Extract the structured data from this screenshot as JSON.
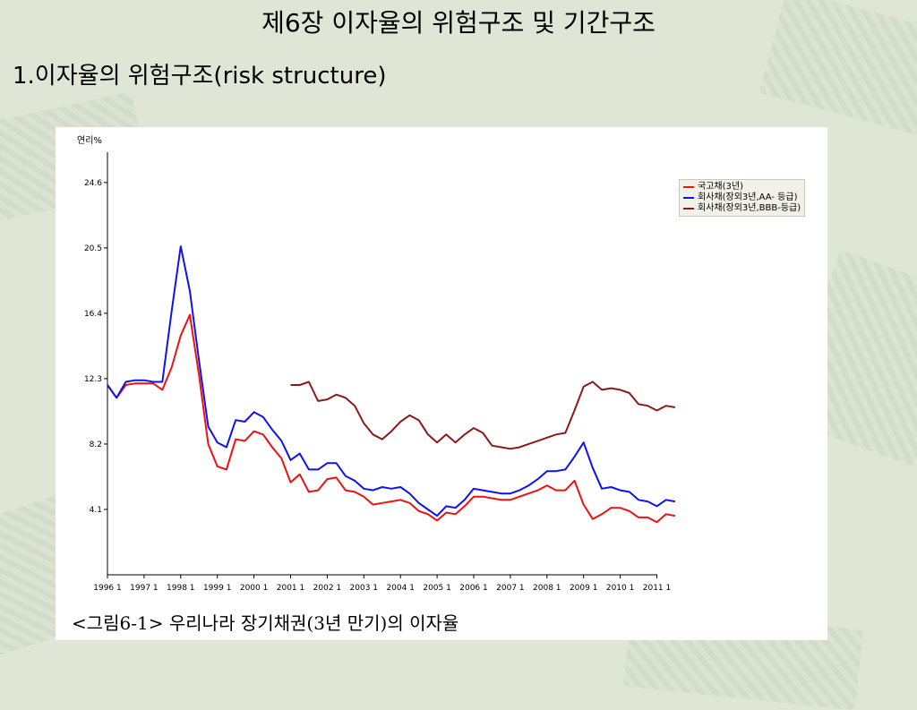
{
  "slide": {
    "title": "제6장 이자율의 위험구조 및 기간구조",
    "subtitle": "1.이자율의 위험구조(risk structure)"
  },
  "chart_data": {
    "type": "line",
    "title": "",
    "ylabel": "연리%",
    "caption": "<그림6-1> 우리나라 장기채권(3년 만기)의 이자율",
    "ylim": [
      0,
      26.5
    ],
    "y_ticks": [
      4.1,
      8.2,
      12.3,
      16.4,
      20.5,
      24.6
    ],
    "y_tick_labels": [
      "4.1",
      "8.2",
      "12.3",
      "16.4",
      "20.5",
      "24.6"
    ],
    "xlim": [
      1996.0,
      2011.0
    ],
    "x_ticks": [
      1996,
      1997,
      1998,
      1999,
      2000,
      2001,
      2002,
      2003,
      2004,
      2005,
      2006,
      2007,
      2008,
      2009,
      2010,
      2011
    ],
    "x_tick_labels": [
      "1996 1",
      "1997 1",
      "1998 1",
      "1999 1",
      "2000 1",
      "2001 1",
      "2002 1",
      "2003 1",
      "2004 1",
      "2005 1",
      "2006 1",
      "2007 1",
      "2008 1",
      "2009 1",
      "2010 1",
      "2011 1"
    ],
    "grid": false,
    "legend_position": "top-right",
    "series": [
      {
        "name": "국고채(3년)",
        "color": "#ee1111",
        "points": [
          [
            1996.0,
            11.9
          ],
          [
            1996.25,
            11.1
          ],
          [
            1996.5,
            11.9
          ],
          [
            1996.75,
            12.0
          ],
          [
            1997.0,
            12.0
          ],
          [
            1997.25,
            12.0
          ],
          [
            1997.5,
            11.6
          ],
          [
            1997.75,
            13.0
          ],
          [
            1998.0,
            15.0
          ],
          [
            1998.25,
            16.3
          ],
          [
            1998.5,
            12.5
          ],
          [
            1998.75,
            8.2
          ],
          [
            1999.0,
            6.8
          ],
          [
            1999.25,
            6.6
          ],
          [
            1999.5,
            8.5
          ],
          [
            1999.75,
            8.4
          ],
          [
            2000.0,
            9.0
          ],
          [
            2000.25,
            8.8
          ],
          [
            2000.5,
            8.0
          ],
          [
            2000.75,
            7.3
          ],
          [
            2001.0,
            5.8
          ],
          [
            2001.25,
            6.3
          ],
          [
            2001.5,
            5.2
          ],
          [
            2001.75,
            5.3
          ],
          [
            2002.0,
            6.0
          ],
          [
            2002.25,
            6.1
          ],
          [
            2002.5,
            5.3
          ],
          [
            2002.75,
            5.2
          ],
          [
            2003.0,
            4.9
          ],
          [
            2003.25,
            4.4
          ],
          [
            2003.5,
            4.5
          ],
          [
            2003.75,
            4.6
          ],
          [
            2004.0,
            4.7
          ],
          [
            2004.25,
            4.5
          ],
          [
            2004.5,
            4.0
          ],
          [
            2004.75,
            3.8
          ],
          [
            2005.0,
            3.4
          ],
          [
            2005.25,
            3.9
          ],
          [
            2005.5,
            3.8
          ],
          [
            2005.75,
            4.3
          ],
          [
            2006.0,
            4.9
          ],
          [
            2006.25,
            4.9
          ],
          [
            2006.5,
            4.8
          ],
          [
            2006.75,
            4.7
          ],
          [
            2007.0,
            4.7
          ],
          [
            2007.25,
            4.9
          ],
          [
            2007.5,
            5.1
          ],
          [
            2007.75,
            5.3
          ],
          [
            2008.0,
            5.6
          ],
          [
            2008.25,
            5.3
          ],
          [
            2008.5,
            5.3
          ],
          [
            2008.75,
            5.9
          ],
          [
            2009.0,
            4.4
          ],
          [
            2009.25,
            3.5
          ],
          [
            2009.5,
            3.8
          ],
          [
            2009.75,
            4.2
          ],
          [
            2010.0,
            4.2
          ],
          [
            2010.25,
            4.0
          ],
          [
            2010.5,
            3.6
          ],
          [
            2010.75,
            3.6
          ],
          [
            2011.0,
            3.3
          ],
          [
            2011.25,
            3.8
          ],
          [
            2011.5,
            3.7
          ]
        ]
      },
      {
        "name": "회사채(장외3년,AA- 등급)",
        "color": "#1111ee",
        "points": [
          [
            1996.0,
            11.9
          ],
          [
            1996.25,
            11.1
          ],
          [
            1996.5,
            12.1
          ],
          [
            1996.75,
            12.2
          ],
          [
            1997.0,
            12.2
          ],
          [
            1997.25,
            12.1
          ],
          [
            1997.5,
            12.1
          ],
          [
            1997.75,
            16.5
          ],
          [
            1998.0,
            20.6
          ],
          [
            1998.25,
            17.8
          ],
          [
            1998.5,
            13.4
          ],
          [
            1998.75,
            9.3
          ],
          [
            1999.0,
            8.3
          ],
          [
            1999.25,
            8.0
          ],
          [
            1999.5,
            9.7
          ],
          [
            1999.75,
            9.6
          ],
          [
            2000.0,
            10.2
          ],
          [
            2000.25,
            9.9
          ],
          [
            2000.5,
            9.1
          ],
          [
            2000.75,
            8.4
          ],
          [
            2001.0,
            7.2
          ],
          [
            2001.25,
            7.6
          ],
          [
            2001.5,
            6.6
          ],
          [
            2001.75,
            6.6
          ],
          [
            2002.0,
            7.0
          ],
          [
            2002.25,
            7.0
          ],
          [
            2002.5,
            6.2
          ],
          [
            2002.75,
            5.9
          ],
          [
            2003.0,
            5.4
          ],
          [
            2003.25,
            5.3
          ],
          [
            2003.5,
            5.5
          ],
          [
            2003.75,
            5.4
          ],
          [
            2004.0,
            5.5
          ],
          [
            2004.25,
            5.1
          ],
          [
            2004.5,
            4.5
          ],
          [
            2004.75,
            4.1
          ],
          [
            2005.0,
            3.7
          ],
          [
            2005.25,
            4.3
          ],
          [
            2005.5,
            4.2
          ],
          [
            2005.75,
            4.7
          ],
          [
            2006.0,
            5.4
          ],
          [
            2006.25,
            5.3
          ],
          [
            2006.5,
            5.2
          ],
          [
            2006.75,
            5.1
          ],
          [
            2007.0,
            5.1
          ],
          [
            2007.25,
            5.3
          ],
          [
            2007.5,
            5.6
          ],
          [
            2007.75,
            6.0
          ],
          [
            2008.0,
            6.5
          ],
          [
            2008.25,
            6.5
          ],
          [
            2008.5,
            6.6
          ],
          [
            2008.75,
            7.4
          ],
          [
            2009.0,
            8.3
          ],
          [
            2009.25,
            6.7
          ],
          [
            2009.5,
            5.4
          ],
          [
            2009.75,
            5.5
          ],
          [
            2010.0,
            5.3
          ],
          [
            2010.25,
            5.2
          ],
          [
            2010.5,
            4.7
          ],
          [
            2010.75,
            4.6
          ],
          [
            2011.0,
            4.3
          ],
          [
            2011.25,
            4.7
          ],
          [
            2011.5,
            4.6
          ]
        ]
      },
      {
        "name": "회사채(장외3년,BBB-등급)",
        "color": "#8b1a1a",
        "points": [
          [
            2001.0,
            11.9
          ],
          [
            2001.25,
            11.9
          ],
          [
            2001.5,
            12.1
          ],
          [
            2001.75,
            10.9
          ],
          [
            2002.0,
            11.0
          ],
          [
            2002.25,
            11.3
          ],
          [
            2002.5,
            11.1
          ],
          [
            2002.75,
            10.6
          ],
          [
            2003.0,
            9.5
          ],
          [
            2003.25,
            8.8
          ],
          [
            2003.5,
            8.5
          ],
          [
            2003.75,
            9.0
          ],
          [
            2004.0,
            9.6
          ],
          [
            2004.25,
            10.0
          ],
          [
            2004.5,
            9.7
          ],
          [
            2004.75,
            8.8
          ],
          [
            2005.0,
            8.3
          ],
          [
            2005.25,
            8.8
          ],
          [
            2005.5,
            8.3
          ],
          [
            2005.75,
            8.8
          ],
          [
            2006.0,
            9.2
          ],
          [
            2006.25,
            8.9
          ],
          [
            2006.5,
            8.1
          ],
          [
            2006.75,
            8.0
          ],
          [
            2007.0,
            7.9
          ],
          [
            2007.25,
            8.0
          ],
          [
            2007.5,
            8.2
          ],
          [
            2007.75,
            8.4
          ],
          [
            2008.0,
            8.6
          ],
          [
            2008.25,
            8.8
          ],
          [
            2008.5,
            8.9
          ],
          [
            2008.75,
            10.3
          ],
          [
            2009.0,
            11.8
          ],
          [
            2009.25,
            12.1
          ],
          [
            2009.5,
            11.6
          ],
          [
            2009.75,
            11.7
          ],
          [
            2010.0,
            11.6
          ],
          [
            2010.25,
            11.4
          ],
          [
            2010.5,
            10.7
          ],
          [
            2010.75,
            10.6
          ],
          [
            2011.0,
            10.3
          ],
          [
            2011.25,
            10.6
          ],
          [
            2011.5,
            10.5
          ]
        ]
      }
    ]
  }
}
